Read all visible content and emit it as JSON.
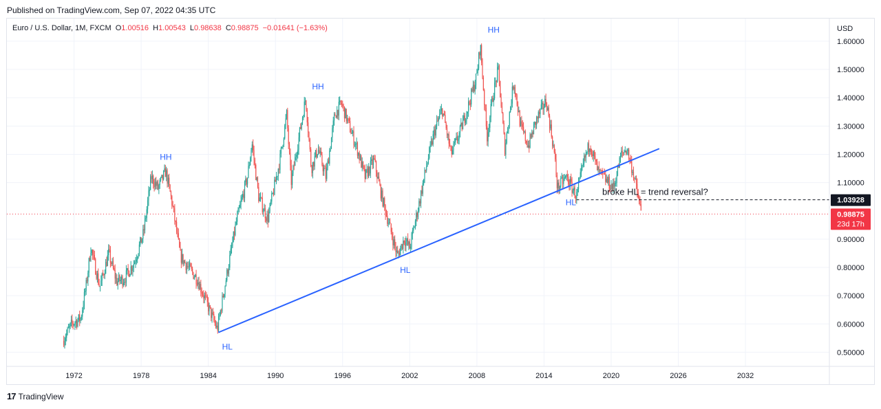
{
  "published": "Published on TradingView.com, Sep 07, 2022 04:35 UTC",
  "footer": {
    "brand": "TradingView",
    "logo_icon": "tradingview-logo-icon"
  },
  "legend": {
    "symbol": "Euro / U.S. Dollar, 1M, FXCM",
    "open_label": "O",
    "open": "1.00516",
    "high_label": "H",
    "high": "1.00543",
    "low_label": "L",
    "low": "0.98638",
    "close_label": "C",
    "close": "0.98875",
    "change": "−0.01641 (−1.63%)"
  },
  "colors": {
    "up": "#26a69a",
    "down": "#ef5350",
    "trendline": "#2962ff",
    "annotation": "#2962ff",
    "price_badge": "#f23645",
    "level_badge": "#131722"
  },
  "chart_data": {
    "type": "candlestick",
    "title": "Euro / U.S. Dollar, 1M, FXCM",
    "currency_label": "USD",
    "ylim": [
      0.45,
      1.68
    ],
    "y_ticks": [
      "1.60000",
      "1.50000",
      "1.40000",
      "1.30000",
      "1.20000",
      "1.10000",
      "0.90000",
      "0.80000",
      "0.70000",
      "0.60000",
      "0.50000"
    ],
    "xlim": [
      1966.0,
      2039.5
    ],
    "x_ticks": [
      "1972",
      "1978",
      "1984",
      "1990",
      "1996",
      "2002",
      "2008",
      "2014",
      "2020",
      "2026",
      "2032"
    ],
    "price_path": [
      [
        1971.0,
        0.54
      ],
      [
        1971.8,
        0.6
      ],
      [
        1972.6,
        0.62
      ],
      [
        1973.1,
        0.74
      ],
      [
        1973.5,
        0.87
      ],
      [
        1974.3,
        0.73
      ],
      [
        1975.1,
        0.85
      ],
      [
        1975.8,
        0.75
      ],
      [
        1976.5,
        0.76
      ],
      [
        1977.4,
        0.82
      ],
      [
        1978.2,
        0.92
      ],
      [
        1978.9,
        1.12
      ],
      [
        1979.5,
        1.08
      ],
      [
        1980.2,
        1.14
      ],
      [
        1980.8,
        1.02
      ],
      [
        1981.5,
        0.84
      ],
      [
        1982.2,
        0.8
      ],
      [
        1983.0,
        0.76
      ],
      [
        1983.8,
        0.68
      ],
      [
        1984.8,
        0.58
      ],
      [
        1985.5,
        0.74
      ],
      [
        1986.5,
        0.96
      ],
      [
        1987.5,
        1.12
      ],
      [
        1987.9,
        1.24
      ],
      [
        1988.5,
        1.05
      ],
      [
        1989.3,
        0.97
      ],
      [
        1990.4,
        1.18
      ],
      [
        1991.0,
        1.34
      ],
      [
        1991.4,
        1.1
      ],
      [
        1992.7,
        1.4
      ],
      [
        1993.2,
        1.15
      ],
      [
        1993.8,
        1.22
      ],
      [
        1994.5,
        1.12
      ],
      [
        1995.3,
        1.34
      ],
      [
        1995.9,
        1.38
      ],
      [
        1996.5,
        1.31
      ],
      [
        1997.3,
        1.22
      ],
      [
        1998.0,
        1.12
      ],
      [
        1998.8,
        1.18
      ],
      [
        1999.5,
        1.05
      ],
      [
        2000.3,
        0.93
      ],
      [
        2000.9,
        0.84
      ],
      [
        2001.5,
        0.9
      ],
      [
        2002.0,
        0.87
      ],
      [
        2002.8,
        1.02
      ],
      [
        2003.5,
        1.16
      ],
      [
        2004.2,
        1.28
      ],
      [
        2004.9,
        1.36
      ],
      [
        2005.7,
        1.2
      ],
      [
        2006.5,
        1.28
      ],
      [
        2007.3,
        1.38
      ],
      [
        2008.0,
        1.48
      ],
      [
        2008.3,
        1.59
      ],
      [
        2008.9,
        1.26
      ],
      [
        2009.4,
        1.4
      ],
      [
        2009.9,
        1.5
      ],
      [
        2010.5,
        1.22
      ],
      [
        2011.3,
        1.46
      ],
      [
        2011.9,
        1.3
      ],
      [
        2012.6,
        1.23
      ],
      [
        2013.3,
        1.32
      ],
      [
        2014.2,
        1.39
      ],
      [
        2014.9,
        1.21
      ],
      [
        2015.2,
        1.08
      ],
      [
        2016.0,
        1.12
      ],
      [
        2016.9,
        1.05
      ],
      [
        2017.6,
        1.18
      ],
      [
        2018.1,
        1.24
      ],
      [
        2018.8,
        1.14
      ],
      [
        2019.5,
        1.11
      ],
      [
        2020.2,
        1.08
      ],
      [
        2020.9,
        1.2
      ],
      [
        2021.4,
        1.22
      ],
      [
        2022.0,
        1.13
      ],
      [
        2022.4,
        1.05
      ],
      [
        2022.7,
        0.99
      ]
    ],
    "trendline": {
      "points": [
        [
          1984.9,
          0.57
        ],
        [
          2024.3,
          1.22
        ]
      ]
    },
    "horizontal_level": {
      "value": 1.03928,
      "from_x": 2016.9,
      "label": "1.03928"
    },
    "current_price": {
      "value": 0.98875,
      "label": "0.98875",
      "countdown": "23d 17h"
    },
    "annotations": [
      {
        "text": "HH",
        "x": 1980.2,
        "y": 1.18
      },
      {
        "text": "HL",
        "x": 1985.7,
        "y": 0.51
      },
      {
        "text": "HH",
        "x": 1993.8,
        "y": 1.43
      },
      {
        "text": "HL",
        "x": 2001.6,
        "y": 0.78
      },
      {
        "text": "HH",
        "x": 2009.5,
        "y": 1.63
      },
      {
        "text": "HL",
        "x": 2016.4,
        "y": 1.02
      },
      {
        "text": "broke HL = trend reversal?",
        "x": 2019.2,
        "y": 1.056
      }
    ]
  }
}
